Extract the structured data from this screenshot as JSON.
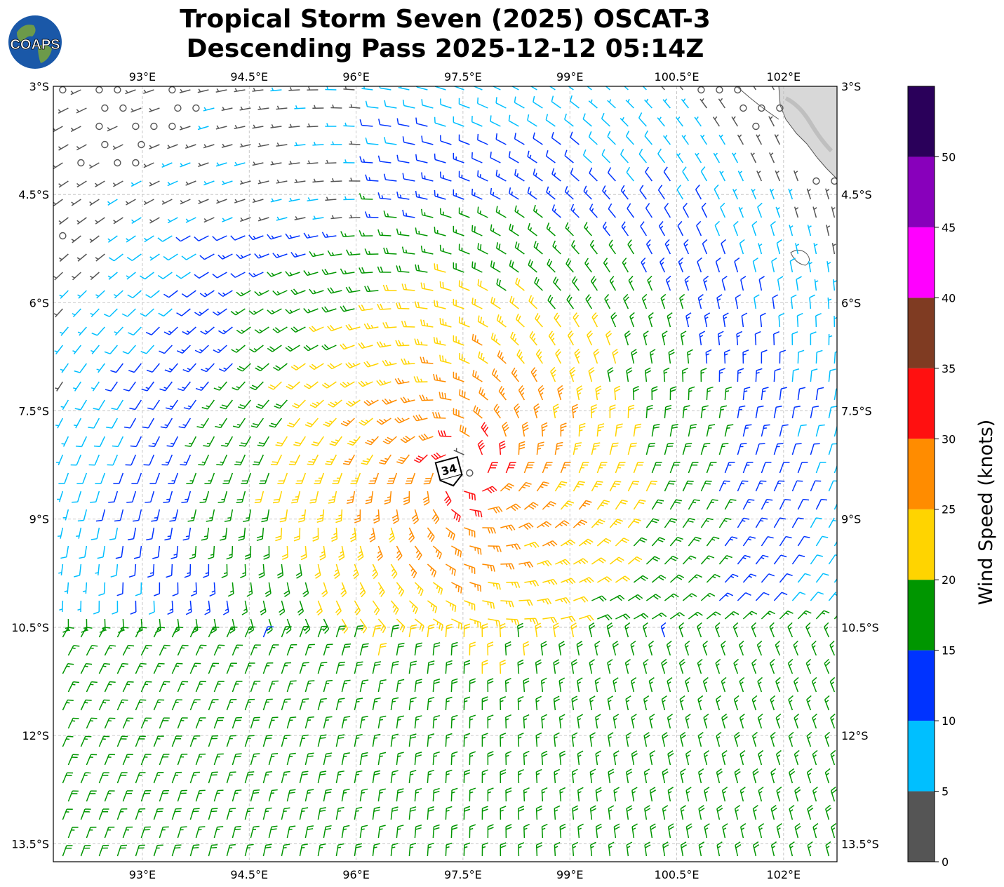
{
  "title_line1": "Tropical Storm Seven (2025) OSCAT-3",
  "title_line2": "Descending Pass 2025-12-12 05:14Z",
  "logo_text": "COAPS",
  "map": {
    "lon_range": [
      91.75,
      102.75
    ],
    "lat_range": [
      -13.75,
      -3.0
    ],
    "lon_ticks": [
      "93°E",
      "94.5°E",
      "96°E",
      "97.5°E",
      "99°E",
      "100.5°E",
      "102°E"
    ],
    "lon_tick_values": [
      93,
      94.5,
      96,
      97.5,
      99,
      100.5,
      102
    ],
    "lat_ticks": [
      "3°S",
      "4.5°S",
      "6°S",
      "7.5°S",
      "9°S",
      "10.5°S",
      "12°S",
      "13.5°S"
    ],
    "lat_tick_values": [
      -3,
      -4.5,
      -6,
      -7.5,
      -9,
      -10.5,
      -12,
      -13.5
    ],
    "gridlines": true,
    "storm_center": {
      "lon": 97.5,
      "lat": -8.35,
      "label": "34"
    },
    "land": "coastline in top-right corner"
  },
  "colorbar": {
    "label": "Wind Speed (knots)",
    "range": [
      0,
      55
    ],
    "bins": [
      {
        "min": 0,
        "max": 5,
        "color": "#555555"
      },
      {
        "min": 5,
        "max": 10,
        "color": "#00bfff"
      },
      {
        "min": 10,
        "max": 15,
        "color": "#0033ff"
      },
      {
        "min": 15,
        "max": 20,
        "color": "#009600"
      },
      {
        "min": 20,
        "max": 25,
        "color": "#ffd400"
      },
      {
        "min": 25,
        "max": 30,
        "color": "#ff8c00"
      },
      {
        "min": 30,
        "max": 35,
        "color": "#ff1010"
      },
      {
        "min": 35,
        "max": 40,
        "color": "#7f3b22"
      },
      {
        "min": 40,
        "max": 45,
        "color": "#ff00ff"
      },
      {
        "min": 45,
        "max": 50,
        "color": "#8800bb"
      },
      {
        "min": 50,
        "max": 55,
        "color": "#2a005a"
      }
    ],
    "tick_labels": [
      "0",
      "5",
      "10",
      "15",
      "20",
      "25",
      "30",
      "35",
      "40",
      "45",
      "50"
    ],
    "tick_values": [
      0,
      5,
      10,
      15,
      20,
      25,
      30,
      35,
      40,
      45,
      50
    ]
  }
}
